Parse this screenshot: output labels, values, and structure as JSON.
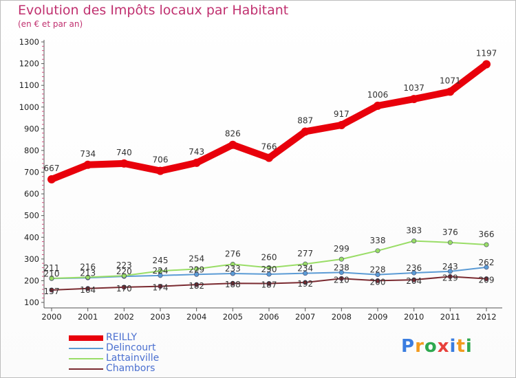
{
  "title": "Evolution des Impôts locaux par Habitant",
  "subtitle": "(en € et par an)",
  "logo": {
    "text": "Proxiti",
    "letters": [
      "P",
      "r",
      "o",
      "x",
      "i",
      "t",
      "i"
    ],
    "colors": [
      "#3a7de0",
      "#f29a1e",
      "#2fa84f",
      "#e8413b",
      "#3a7de0",
      "#f29a1e",
      "#2fa84f"
    ]
  },
  "chart_data": {
    "type": "line",
    "categories": [
      "2000",
      "2001",
      "2002",
      "2003",
      "2004",
      "2005",
      "2006",
      "2007",
      "2008",
      "2009",
      "2010",
      "2011",
      "2012"
    ],
    "ylim": [
      100,
      1300
    ],
    "yticks": [
      100,
      200,
      300,
      400,
      500,
      600,
      700,
      800,
      900,
      1000,
      1100,
      1200,
      1300
    ],
    "grid": false,
    "series": [
      {
        "name": "REILLY",
        "color": "#e8000b",
        "values": [
          667,
          734,
          740,
          706,
          743,
          826,
          766,
          887,
          917,
          1006,
          1037,
          1071,
          1197
        ]
      },
      {
        "name": "Delincourt",
        "color": "#5b9bd5",
        "values": [
          210,
          213,
          220,
          224,
          229,
          233,
          230,
          234,
          238,
          228,
          236,
          243,
          262
        ]
      },
      {
        "name": "Lattainville",
        "color": "#99dd66",
        "values": [
          211,
          216,
          223,
          245,
          254,
          276,
          260,
          277,
          299,
          338,
          383,
          376,
          366
        ]
      },
      {
        "name": "Chambors",
        "color": "#7a2a30",
        "values": [
          157,
          164,
          170,
          174,
          182,
          188,
          187,
          192,
          210,
          200,
          204,
          219,
          209
        ]
      }
    ]
  }
}
